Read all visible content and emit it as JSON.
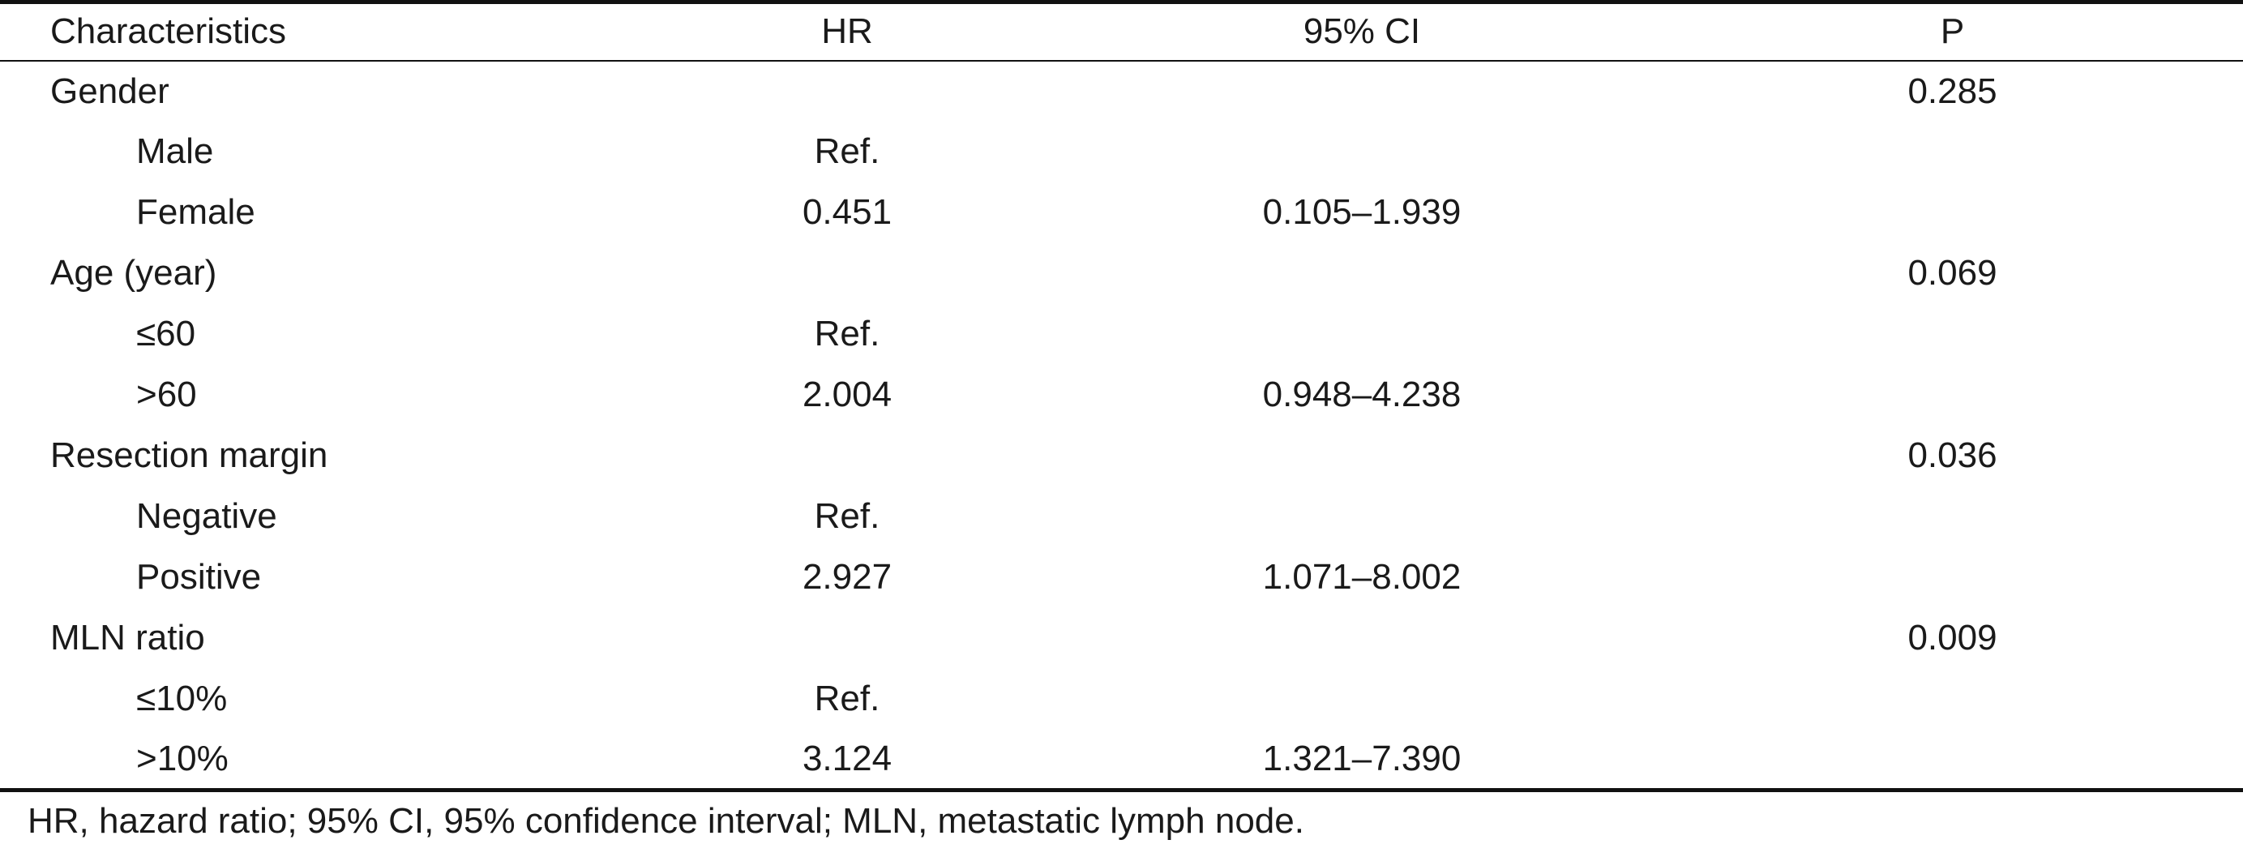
{
  "table": {
    "headers": [
      "Characteristics",
      "HR",
      "95% CI",
      "P"
    ],
    "rows": [
      {
        "label": "Gender",
        "hr": "",
        "ci": "",
        "p": "0.285",
        "indent": false
      },
      {
        "label": "Male",
        "hr": "Ref.",
        "ci": "",
        "p": "",
        "indent": true
      },
      {
        "label": "Female",
        "hr": "0.451",
        "ci": "0.105–1.939",
        "p": "",
        "indent": true
      },
      {
        "label": "Age (year)",
        "hr": "",
        "ci": "",
        "p": "0.069",
        "indent": false
      },
      {
        "label": "≤60",
        "hr": "Ref.",
        "ci": "",
        "p": "",
        "indent": true
      },
      {
        "label": ">60",
        "hr": "2.004",
        "ci": "0.948–4.238",
        "p": "",
        "indent": true
      },
      {
        "label": "Resection margin",
        "hr": "",
        "ci": "",
        "p": "0.036",
        "indent": false
      },
      {
        "label": "Negative",
        "hr": "Ref.",
        "ci": "",
        "p": "",
        "indent": true
      },
      {
        "label": "Positive",
        "hr": "2.927",
        "ci": "1.071–8.002",
        "p": "",
        "indent": true
      },
      {
        "label": "MLN ratio",
        "hr": "",
        "ci": "",
        "p": "0.009",
        "indent": false
      },
      {
        "label": "≤10%",
        "hr": "Ref.",
        "ci": "",
        "p": "",
        "indent": true
      },
      {
        "label": ">10%",
        "hr": "3.124",
        "ci": "1.321–7.390",
        "p": "",
        "indent": true
      }
    ]
  },
  "footnote": "HR, hazard ratio; 95% CI, 95% confidence interval; MLN, metastatic lymph node."
}
